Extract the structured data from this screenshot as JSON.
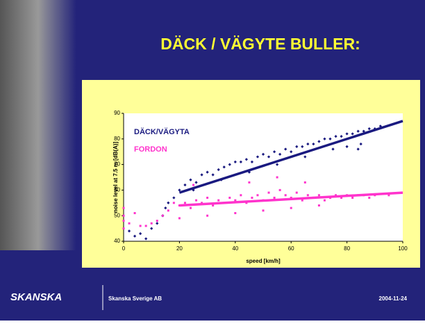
{
  "slide": {
    "title": "DÄCK / VÄGYTE BULLER:",
    "logo": "SKANSKA",
    "company": "Skanska Sverige AB",
    "date": "2004-11-24"
  },
  "chart_data": {
    "type": "scatter",
    "x_label": "speed [km/h]",
    "y_label": "noise level at 7.5 m [dB(A)]",
    "xlim": [
      0,
      100
    ],
    "xticks": [
      0,
      20,
      40,
      60,
      80,
      100
    ],
    "ylim": [
      40,
      90
    ],
    "yticks": [
      40,
      50,
      60,
      70,
      80,
      90
    ],
    "series": [
      {
        "name": "DÄCK/VÄGYTA",
        "color": "#1a1a80",
        "x": [
          2,
          4,
          6,
          8,
          10,
          12,
          14,
          16,
          18,
          20,
          22,
          24,
          26,
          28,
          30,
          32,
          34,
          36,
          38,
          40,
          42,
          44,
          46,
          48,
          50,
          52,
          54,
          56,
          58,
          60,
          62,
          64,
          66,
          68,
          70,
          72,
          74,
          76,
          78,
          80,
          82,
          84,
          86,
          88,
          90,
          92,
          15,
          25,
          35,
          45,
          55,
          65,
          75,
          85,
          80,
          84
        ],
        "values": [
          44,
          42,
          43,
          41,
          45,
          47,
          50,
          55,
          57,
          60,
          62,
          64,
          63,
          66,
          67,
          66,
          68,
          69,
          70,
          71,
          71,
          72,
          71,
          73,
          74,
          73,
          75,
          74,
          76,
          75,
          77,
          77,
          78,
          78,
          79,
          80,
          80,
          81,
          81,
          82,
          82,
          83,
          83,
          84,
          84,
          85,
          53,
          60,
          64,
          67,
          70,
          73,
          76,
          78,
          77,
          76
        ]
      },
      {
        "name": "FORDON",
        "color": "#ff33cc",
        "x": [
          0,
          0,
          0,
          0,
          2,
          4,
          6,
          8,
          10,
          12,
          14,
          16,
          18,
          20,
          22,
          24,
          26,
          28,
          30,
          32,
          34,
          36,
          38,
          40,
          42,
          44,
          46,
          48,
          50,
          52,
          54,
          56,
          58,
          60,
          62,
          64,
          66,
          68,
          70,
          72,
          74,
          76,
          78,
          80,
          82,
          84,
          86,
          88,
          90,
          95,
          20,
          30,
          40,
          50,
          60,
          70,
          25,
          45,
          55,
          65
        ],
        "values": [
          45,
          50,
          53,
          48,
          47,
          51,
          46,
          46,
          47,
          48,
          50,
          52,
          55,
          54,
          55,
          53,
          56,
          55,
          57,
          54,
          56,
          55,
          57,
          56,
          58,
          55,
          57,
          58,
          56,
          59,
          57,
          60,
          58,
          57,
          59,
          56,
          58,
          57,
          58,
          56,
          57,
          58,
          57,
          58,
          57,
          58,
          58,
          57,
          58,
          58,
          49,
          50,
          51,
          52,
          53,
          54,
          62,
          63,
          65,
          63
        ]
      }
    ],
    "trendlines": [
      {
        "color": "#1a1a80",
        "x": [
          20,
          100
        ],
        "values": [
          59,
          87
        ]
      },
      {
        "color": "#ff33cc",
        "x": [
          20,
          100
        ],
        "values": [
          54,
          59
        ]
      }
    ]
  }
}
